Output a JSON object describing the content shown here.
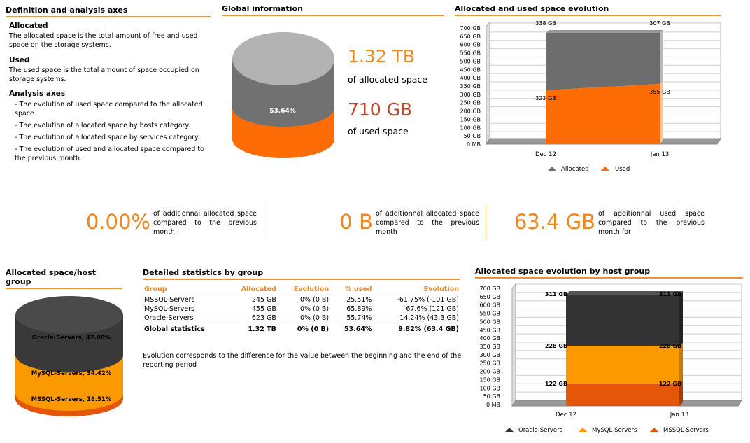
{
  "definition": {
    "title": "Definition and analysis axes",
    "allocated_heading": "Allocated",
    "allocated_text_1": "The allocated space is the total amount of free and used",
    "allocated_text_2": "space on the storage systems.",
    "used_heading": "Used",
    "used_text_1": "The used space is the total amount of space occupied on",
    "used_text_2": "storage systems.",
    "axes_heading": "Analysis axes",
    "axes_items": [
      [
        "- The evolution of used space compared to the allocated",
        "space."
      ],
      [
        "- The evolution of allocated space by hosts category."
      ],
      [
        "- The evolution of allocated space by services category."
      ],
      [
        "- The evolution of used and allocated space compared to",
        "the previous month."
      ]
    ]
  },
  "global": {
    "title": "Global information",
    "cylinder_pct": "53.64%",
    "allocated_value": "1.32 TB",
    "allocated_label": "of allocated space",
    "used_value": "710 GB",
    "used_label": "of used space",
    "colors": {
      "top": "#b2b2b2",
      "allocated": "#717171",
      "used": "#fe6c05"
    }
  },
  "evolution": {
    "title": "Allocated and used space evolution",
    "y_ticks": [
      "700 GB",
      "650 GB",
      "600 GB",
      "550 GB",
      "500 GB",
      "450 GB",
      "400 GB",
      "350 GB",
      "300 GB",
      "250 GB",
      "200 GB",
      "150 GB",
      "100 GB",
      "50 GB",
      "0 MB"
    ],
    "x_ticks": [
      "Dec 12",
      "Jan 13"
    ],
    "labels": {
      "alloc_start": "338 GB",
      "alloc_end": "307 GB",
      "used_start": "323 GB",
      "used_end": "355 GB"
    },
    "legend": [
      "Allocated",
      "Used"
    ]
  },
  "kpis": [
    {
      "value": "0.00%",
      "text": "of additionnal allocated space compared to the previous month"
    },
    {
      "value": "0 B",
      "text": "of additionnal allocated space compared to the previous month"
    },
    {
      "value": "63.4 GB",
      "text": "of additionnal used space compared to the previous month for"
    }
  ],
  "hostgroup": {
    "title": "Allocated space/host group",
    "segments": [
      {
        "label": "Oracle-Servers, 47.08%",
        "color": "#393939"
      },
      {
        "label": "MySQL-Servers, 34.42%",
        "color": "#fb9a00"
      },
      {
        "label": "MSSQL-Servers, 18.51%",
        "color": "#e5560b"
      }
    ]
  },
  "stats": {
    "title": "Detailed statistics by group",
    "headers": [
      "Group",
      "Allocated",
      "Evolution",
      "% used",
      "Evolution"
    ],
    "rows": [
      [
        "MSSQL-Servers",
        "245 GB",
        "0% (0 B)",
        "25.51%",
        "-61.75% (-101 GB)"
      ],
      [
        "MySQL-Servers",
        "455 GB",
        "0% (0 B)",
        "65.89%",
        "67.6% (121 GB)"
      ],
      [
        "Oracle-Servers",
        "623 GB",
        "0% (0 B)",
        "55.74%",
        "14.24% (43.3 GB)"
      ]
    ],
    "total": [
      "Global statistics",
      "1.32 TB",
      "0% (0 B)",
      "53.64%",
      "9.82% (63.4 GB)"
    ],
    "note_1": "Evolution corresponds to the difference for the value between the beginning and the end of the",
    "note_2": "reporting period"
  },
  "hg_evolution": {
    "title": "Allocated space evolution by host group",
    "y_ticks": [
      "700 GB",
      "650 GB",
      "600 GB",
      "550 GB",
      "500 GB",
      "450 GB",
      "400 GB",
      "350 GB",
      "300 GB",
      "250 GB",
      "200 GB",
      "150 GB",
      "100 GB",
      "50 GB",
      "0 MB"
    ],
    "x_ticks": [
      "Dec 12",
      "Jan 13"
    ],
    "labels": {
      "oracle": "311 GB",
      "mysql": "228 GB",
      "mssql": "122 GB"
    },
    "legend": [
      "Oracle-Servers",
      "MySQL-Servers",
      "MSSQL-Servers"
    ]
  },
  "chart_data": [
    {
      "type": "area",
      "title": "Allocated and used space evolution",
      "x": [
        "Dec 12",
        "Jan 13"
      ],
      "ylim": [
        0,
        700
      ],
      "series": [
        {
          "name": "Allocated",
          "values": [
            661,
            662
          ]
        },
        {
          "name": "Used",
          "values": [
            323,
            355
          ]
        }
      ]
    },
    {
      "type": "area",
      "title": "Allocated space evolution by host group",
      "x": [
        "Dec 12",
        "Jan 13"
      ],
      "ylim": [
        0,
        700
      ],
      "series": [
        {
          "name": "MSSQL-Servers",
          "values": [
            122,
            122
          ]
        },
        {
          "name": "MySQL-Servers",
          "values": [
            228,
            228
          ]
        },
        {
          "name": "Oracle-Servers",
          "values": [
            311,
            311
          ]
        }
      ]
    }
  ]
}
